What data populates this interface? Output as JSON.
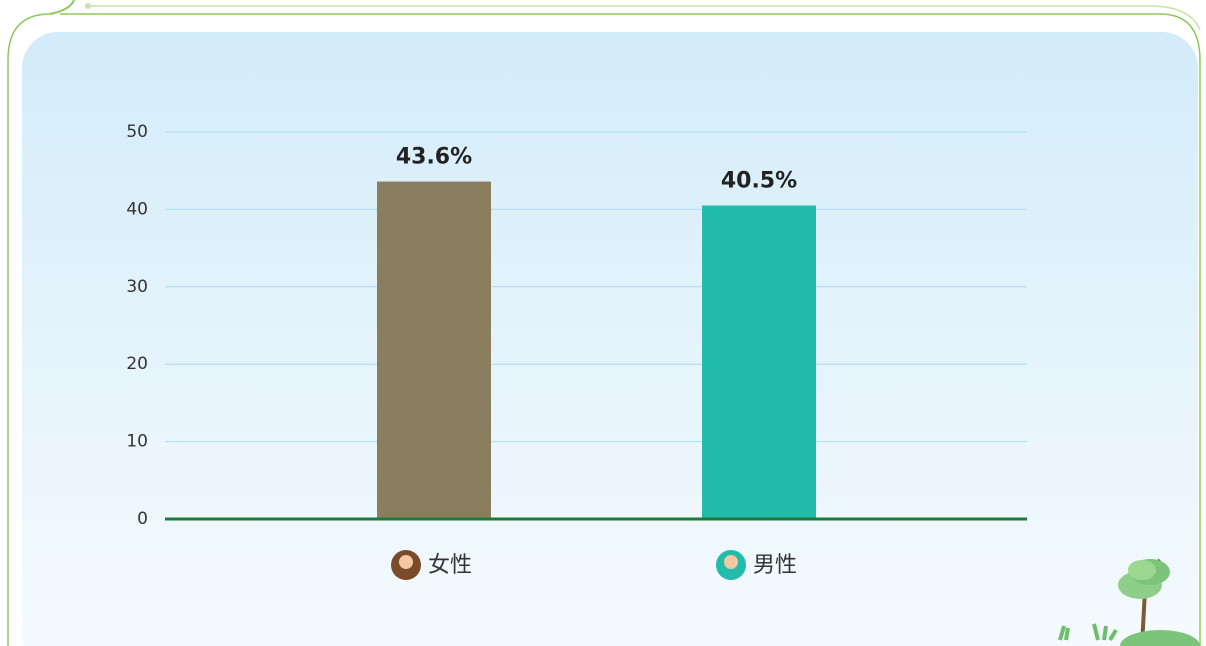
{
  "chart_data": {
    "type": "bar",
    "categories": [
      "女性",
      "男性"
    ],
    "values": [
      43.6,
      40.5
    ],
    "value_labels": [
      "43.6%",
      "40.5%"
    ],
    "colors": [
      "#8b7e5f",
      "#22bcaa"
    ],
    "ylim": [
      0,
      50
    ],
    "yticks": [
      0,
      10,
      20,
      30,
      40,
      50
    ],
    "grid": true
  }
}
